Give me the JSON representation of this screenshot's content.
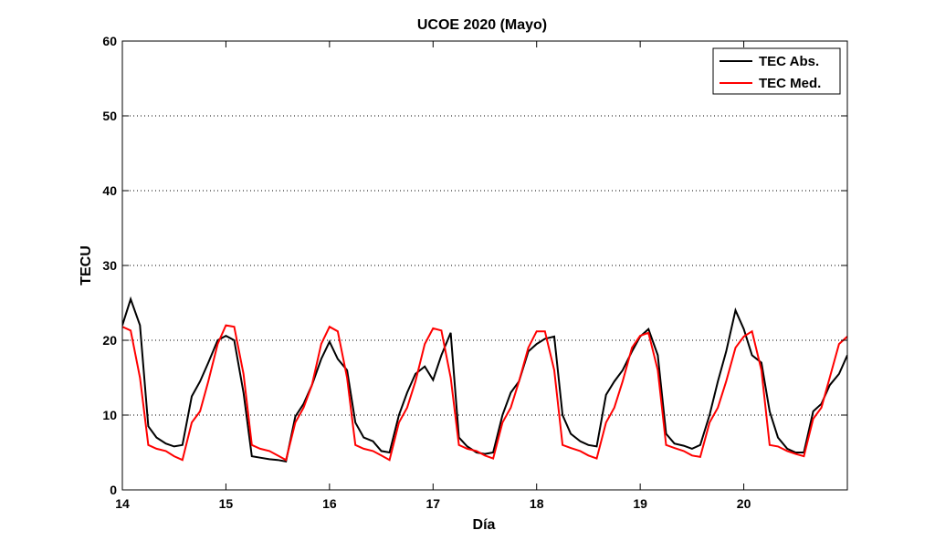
{
  "chart_data": {
    "type": "line",
    "title": "UCOE 2020 (Mayo)",
    "xlabel": "Día",
    "ylabel": "TECU",
    "xlim": [
      14,
      21
    ],
    "ylim": [
      0,
      60
    ],
    "xticks": [
      "14",
      "15",
      "16",
      "17",
      "18",
      "19",
      "20"
    ],
    "yticks": [
      "0",
      "10",
      "20",
      "30",
      "40",
      "50",
      "60"
    ],
    "grid": "horizontal dotted",
    "legend_position": "top-right",
    "series": [
      {
        "name": "TEC Abs.",
        "color": "#000000",
        "x": [
          14.0,
          14.08,
          14.17,
          14.25,
          14.33,
          14.42,
          14.5,
          14.58,
          14.67,
          14.75,
          14.83,
          14.92,
          15.0,
          15.08,
          15.17,
          15.25,
          15.33,
          15.42,
          15.5,
          15.58,
          15.67,
          15.75,
          15.83,
          15.92,
          16.0,
          16.08,
          16.17,
          16.25,
          16.33,
          16.42,
          16.5,
          16.58,
          16.67,
          16.75,
          16.83,
          16.92,
          17.0,
          17.08,
          17.17,
          17.25,
          17.33,
          17.42,
          17.5,
          17.58,
          17.67,
          17.75,
          17.83,
          17.92,
          18.0,
          18.08,
          18.17,
          18.25,
          18.33,
          18.42,
          18.5,
          18.58,
          18.67,
          18.75,
          18.83,
          18.92,
          19.0,
          19.08,
          19.17,
          19.25,
          19.33,
          19.42,
          19.5,
          19.58,
          19.67,
          19.75,
          19.83,
          19.92,
          20.0,
          20.08,
          20.17,
          20.25,
          20.33,
          20.42,
          20.5,
          20.58,
          20.67,
          20.75,
          20.83,
          20.92,
          21.0
        ],
        "y": [
          22.0,
          25.5,
          22.0,
          8.5,
          7.0,
          6.2,
          5.8,
          6.0,
          12.5,
          14.5,
          17.0,
          20.0,
          20.6,
          20.0,
          13.0,
          4.5,
          4.3,
          4.1,
          4.0,
          3.8,
          9.8,
          11.5,
          14.0,
          17.5,
          19.8,
          17.5,
          16.0,
          9.0,
          7.0,
          6.5,
          5.2,
          5.0,
          10.0,
          13.0,
          15.5,
          16.5,
          14.7,
          18.0,
          21.0,
          7.0,
          5.8,
          5.0,
          4.8,
          5.0,
          10.0,
          13.0,
          14.5,
          18.5,
          19.5,
          20.2,
          20.5,
          10.0,
          7.5,
          6.5,
          6.0,
          5.8,
          12.7,
          14.5,
          16.0,
          18.5,
          20.5,
          21.5,
          18.0,
          7.5,
          6.2,
          5.9,
          5.5,
          6.0,
          10.0,
          14.5,
          18.5,
          24.0,
          21.5,
          18.0,
          17.0,
          10.5,
          7.0,
          5.5,
          5.0,
          5.0,
          10.5,
          11.5,
          14.0,
          15.5,
          18.0
        ]
      },
      {
        "name": "TEC Med.",
        "color": "#ff0000",
        "x": [
          14.0,
          14.08,
          14.17,
          14.25,
          14.33,
          14.42,
          14.5,
          14.58,
          14.67,
          14.75,
          14.83,
          14.92,
          15.0,
          15.08,
          15.17,
          15.25,
          15.33,
          15.42,
          15.5,
          15.58,
          15.67,
          15.75,
          15.83,
          15.92,
          16.0,
          16.08,
          16.17,
          16.25,
          16.33,
          16.42,
          16.5,
          16.58,
          16.67,
          16.75,
          16.83,
          16.92,
          17.0,
          17.08,
          17.17,
          17.25,
          17.33,
          17.42,
          17.5,
          17.58,
          17.67,
          17.75,
          17.83,
          17.92,
          18.0,
          18.08,
          18.17,
          18.25,
          18.33,
          18.42,
          18.5,
          18.58,
          18.67,
          18.75,
          18.83,
          18.92,
          19.0,
          19.08,
          19.17,
          19.25,
          19.33,
          19.42,
          19.5,
          19.58,
          19.67,
          19.75,
          19.83,
          19.92,
          20.0,
          20.08,
          20.17,
          20.25,
          20.33,
          20.42,
          20.5,
          20.58,
          20.67,
          20.75,
          20.83,
          20.92,
          21.0
        ],
        "y": [
          21.8,
          21.3,
          15.0,
          6.0,
          5.5,
          5.2,
          4.5,
          4.0,
          9.0,
          10.5,
          14.5,
          19.5,
          22.0,
          21.8,
          15.5,
          6.0,
          5.5,
          5.2,
          4.6,
          4.0,
          9.0,
          11.0,
          14.0,
          19.5,
          21.8,
          21.2,
          15.0,
          6.0,
          5.5,
          5.2,
          4.6,
          4.0,
          9.0,
          11.0,
          14.5,
          19.5,
          21.6,
          21.3,
          15.0,
          6.0,
          5.5,
          5.2,
          4.6,
          4.2,
          9.0,
          11.0,
          14.5,
          19.0,
          21.2,
          21.2,
          16.0,
          6.0,
          5.6,
          5.2,
          4.6,
          4.2,
          9.0,
          11.0,
          14.5,
          19.0,
          20.6,
          21.0,
          16.0,
          6.0,
          5.6,
          5.2,
          4.6,
          4.4,
          9.0,
          11.0,
          14.5,
          19.0,
          20.5,
          21.2,
          16.0,
          6.0,
          5.8,
          5.2,
          4.8,
          4.5,
          9.5,
          11.0,
          15.0,
          19.5,
          20.5
        ]
      }
    ]
  }
}
